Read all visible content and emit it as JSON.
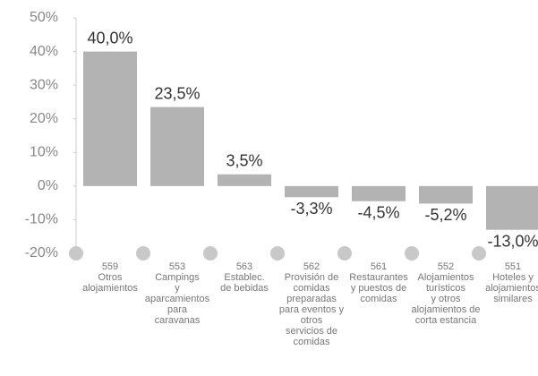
{
  "chart_data": {
    "type": "bar",
    "categories": [
      [
        "559",
        "Otros",
        "alojamientos"
      ],
      [
        "553",
        "Campings",
        "y",
        "aparcamientos",
        "para",
        "caravanas"
      ],
      [
        "563",
        "Establec.",
        "de bebidas"
      ],
      [
        "562",
        "Provisión de",
        "comidas",
        "preparadas",
        "para eventos y",
        "otros",
        "servicios de",
        "comidas"
      ],
      [
        "561",
        "Restaurantes",
        "y puestos de",
        "comidas"
      ],
      [
        "552",
        "Alojamientos",
        "turísticos",
        "y otros",
        "alojamientos de",
        "corta estancia"
      ],
      [
        "551",
        "Hoteles y",
        "alojamientos",
        "similares"
      ]
    ],
    "values": [
      40.0,
      23.5,
      3.5,
      -3.3,
      -4.5,
      -5.2,
      -13.0
    ],
    "value_labels": [
      "40,0%",
      "23,5%",
      "3,5%",
      "-3,3%",
      "-4,5%",
      "-5,2%",
      "-13,0%"
    ],
    "color": "#b3b3b3",
    "ylim": [
      -20,
      50
    ],
    "yticks": [
      {
        "value": -20,
        "label": "-20%"
      },
      {
        "value": -10,
        "label": "-10%"
      },
      {
        "value": 0,
        "label": "0%"
      },
      {
        "value": 10,
        "label": "10%"
      },
      {
        "value": 20,
        "label": "20%"
      },
      {
        "value": 30,
        "label": "30%"
      },
      {
        "value": 40,
        "label": "40%"
      },
      {
        "value": 50,
        "label": "50%"
      }
    ]
  }
}
